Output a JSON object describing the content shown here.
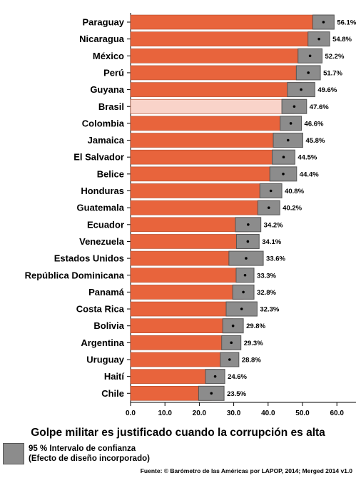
{
  "chart_data": {
    "type": "bar",
    "title": "Golpe militar es justificado cuando la corrupción es alta",
    "categories": [
      "Paraguay",
      "Nicaragua",
      "México",
      "Perú",
      "Guyana",
      "Brasil",
      "Colombia",
      "Jamaica",
      "El Salvador",
      "Belice",
      "Honduras",
      "Guatemala",
      "Ecuador",
      "Venezuela",
      "Estados Unidos",
      "República Dominicana",
      "Panamá",
      "Costa Rica",
      "Bolivia",
      "Argentina",
      "Uruguay",
      "Haití",
      "Chile"
    ],
    "values": [
      56.1,
      54.8,
      52.2,
      51.7,
      49.6,
      47.6,
      46.6,
      45.8,
      44.5,
      44.4,
      40.8,
      40.2,
      34.2,
      34.1,
      33.6,
      33.3,
      32.8,
      32.3,
      29.8,
      29.3,
      28.8,
      24.6,
      23.5
    ],
    "value_labels": [
      "56.1%",
      "54.8%",
      "52.2%",
      "51.7%",
      "49.6%",
      "47.6%",
      "46.6%",
      "45.8%",
      "44.5%",
      "44.4%",
      "40.8%",
      "40.2%",
      "34.2%",
      "34.1%",
      "33.6%",
      "33.3%",
      "32.8%",
      "32.3%",
      "29.8%",
      "29.3%",
      "28.8%",
      "24.6%",
      "23.5%"
    ],
    "ci_lower": [
      53.0,
      51.6,
      48.7,
      48.2,
      45.6,
      44.0,
      43.5,
      41.5,
      41.2,
      40.5,
      37.6,
      37.0,
      30.5,
      30.8,
      28.6,
      30.7,
      29.7,
      27.8,
      26.8,
      26.5,
      26.1,
      21.8,
      19.8
    ],
    "ci_upper": [
      59.2,
      57.9,
      55.7,
      55.2,
      53.6,
      51.2,
      49.7,
      50.1,
      47.8,
      48.3,
      44.0,
      43.4,
      37.9,
      37.4,
      38.6,
      35.9,
      35.9,
      36.8,
      32.8,
      32.1,
      31.5,
      27.4,
      27.2
    ],
    "highlight": "Brasil",
    "xlim": [
      0,
      65
    ],
    "xticks": [
      "0.0",
      "10.0",
      "20.0",
      "30.0",
      "40.0",
      "50.0",
      "60.0"
    ],
    "xtick_values": [
      0,
      10,
      20,
      30,
      40,
      50,
      60
    ],
    "grid": false,
    "colors": {
      "bar": "#e8643c",
      "highlight_bar": "#f9d3c9",
      "ci_box": "#8c8c8c",
      "ci_edge": "#555555",
      "point": "#000000"
    }
  },
  "legend": {
    "line1": "95 % Intervalo de confianza",
    "line2": "(Efecto de diseño incorporado)"
  },
  "source": "Fuente: © Barómetro de las Américas por LAPOP, 2014; Merged 2014 v1.0"
}
